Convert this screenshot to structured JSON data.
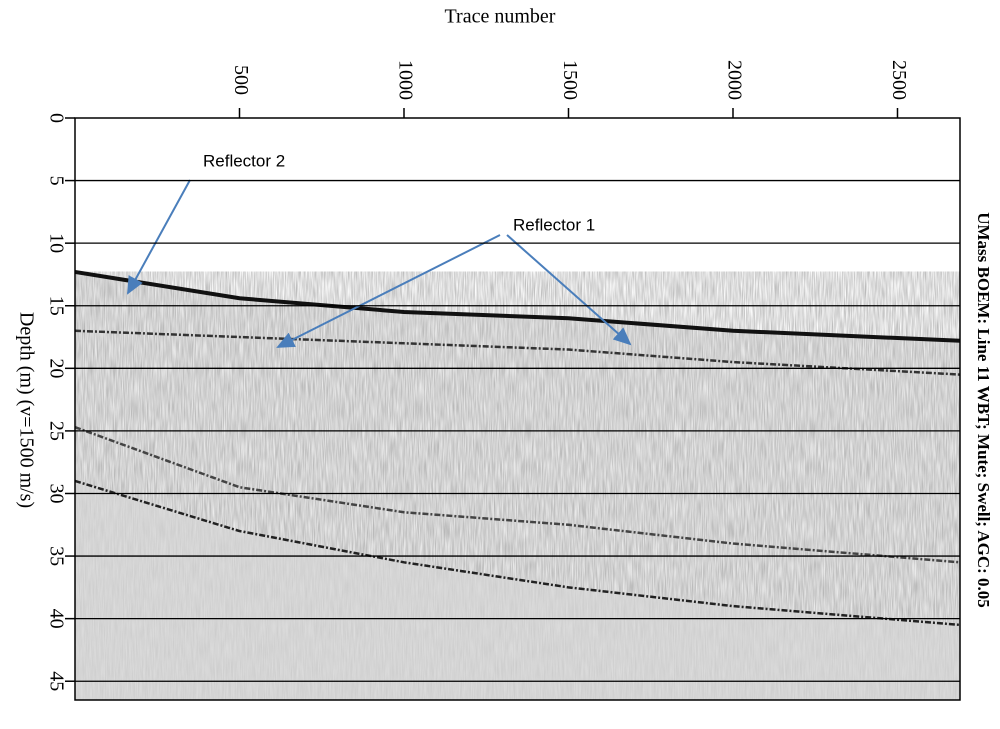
{
  "chart_data": {
    "type": "seismic",
    "title": "UMass BOEM: Line 11 WBT; Mute; Swell; AGC: 0.05",
    "x_label": "Trace number",
    "y_label": "Depth (m) (v=1500 m/s)",
    "x": [
      0,
      500,
      1000,
      1500,
      2000,
      2690
    ],
    "series": [
      {
        "color": "#111111",
        "values": [
          12.3,
          14.4,
          15.5,
          16.0,
          17.0,
          17.8
        ]
      },
      {
        "color": "#333333",
        "values": [
          17.0,
          17.5,
          18.0,
          18.5,
          19.5,
          20.5
        ]
      },
      {
        "color": "#444444",
        "values": [
          24.7,
          29.5,
          31.5,
          32.5,
          34.0,
          35.5
        ]
      },
      {
        "color": "#222222",
        "values": [
          29.0,
          33.0,
          35.5,
          37.5,
          39.0,
          40.5
        ]
      }
    ],
    "xlim": [
      0,
      2690
    ],
    "xticks": [
      500,
      1000,
      1500,
      2000,
      2500
    ],
    "ylim": [
      0,
      46.5
    ],
    "yticks": [
      0,
      5,
      10,
      15,
      20,
      25,
      30,
      35,
      40,
      45
    ],
    "grid": true,
    "annotations": [
      "Reflector 2",
      "Reflector 1"
    ]
  }
}
